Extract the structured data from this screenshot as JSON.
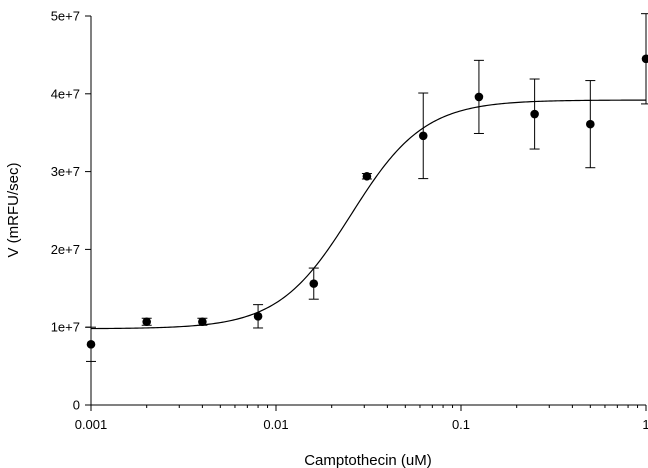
{
  "chart_data": {
    "type": "scatter",
    "title": "",
    "xlabel": "Camptothecin (uM)",
    "ylabel": "V (mRFU/sec)",
    "x_scale": "log",
    "xlim": [
      0.001,
      1
    ],
    "ylim": [
      0,
      50000000
    ],
    "x_ticks": [
      0.001,
      0.01,
      0.1,
      1
    ],
    "x_tick_labels": [
      "0.001",
      "0.01",
      "0.1",
      "1"
    ],
    "y_ticks": [
      0,
      10000000,
      20000000,
      30000000,
      40000000,
      50000000
    ],
    "y_tick_labels": [
      "0",
      "1e+7",
      "2e+7",
      "3e+7",
      "4e+7",
      "5e+7"
    ],
    "grid": false,
    "legend": "none",
    "series": [
      {
        "type": "scatter",
        "x": [
          0.001,
          0.002,
          0.004,
          0.008,
          0.016,
          0.031,
          0.0625,
          0.125,
          0.25,
          0.5,
          1
        ],
        "y": [
          7800000,
          10700000,
          10700000,
          11400000,
          15600000,
          29400000,
          34600000,
          39600000,
          37400000,
          36100000,
          44500000
        ],
        "error": [
          2200000,
          450000,
          450000,
          1500000,
          2000000,
          350000,
          5500000,
          4700000,
          4500000,
          5600000,
          5800000
        ]
      },
      {
        "type": "line",
        "model": "four-parameter logistic fit",
        "bottom": 9800000,
        "top": 39200000,
        "ec50": 0.0255,
        "hill": 2.2
      }
    ]
  }
}
